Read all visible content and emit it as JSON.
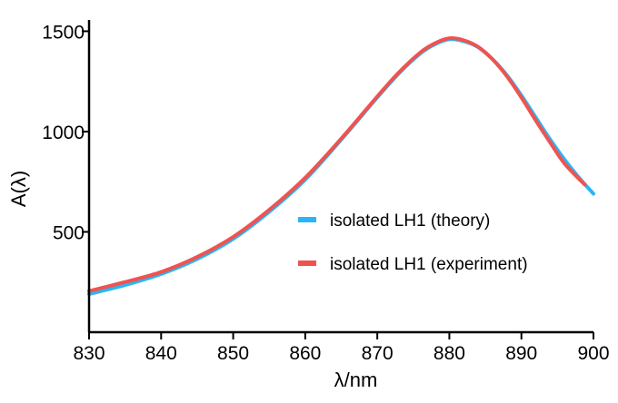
{
  "chart_data": {
    "type": "line",
    "title": "",
    "xlabel": "λ/nm",
    "ylabel": "A(λ)",
    "xlim": [
      830,
      900
    ],
    "ylim": [
      0,
      1520
    ],
    "xticks": [
      830,
      840,
      850,
      860,
      870,
      880,
      890,
      900
    ],
    "yticks": [
      500,
      1000,
      1500
    ],
    "grid": false,
    "legend_position": "center-right",
    "series": [
      {
        "name": "isolated LH1 (theory)",
        "color": "#29b6f6",
        "x": [
          830,
          835,
          840,
          845,
          850,
          855,
          860,
          865,
          870,
          873,
          876,
          878,
          880,
          882,
          884,
          886,
          888,
          890,
          892,
          894,
          896,
          898,
          900
        ],
        "y": [
          190,
          235,
          290,
          365,
          465,
          600,
          760,
          960,
          1170,
          1290,
          1390,
          1435,
          1460,
          1450,
          1420,
          1360,
          1280,
          1180,
          1070,
          960,
          860,
          770,
          690
        ]
      },
      {
        "name": "isolated LH1 (experiment)",
        "color": "#ef5350",
        "x": [
          830,
          835,
          840,
          845,
          850,
          855,
          860,
          865,
          870,
          873,
          876,
          878,
          880,
          882,
          884,
          886,
          888,
          890,
          892,
          894,
          896,
          898.8
        ],
        "y": [
          205,
          250,
          300,
          375,
          475,
          610,
          770,
          965,
          1175,
          1295,
          1395,
          1440,
          1465,
          1455,
          1422,
          1360,
          1275,
          1170,
          1055,
          945,
          840,
          735
        ]
      }
    ]
  }
}
